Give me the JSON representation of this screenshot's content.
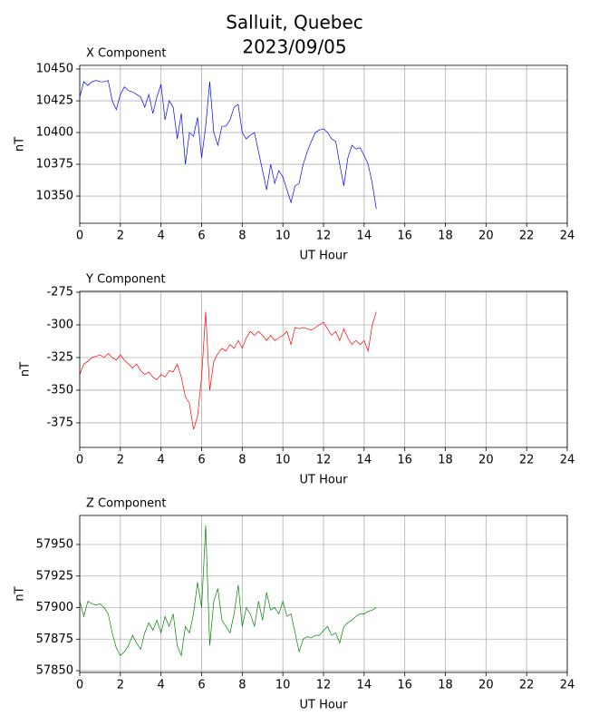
{
  "title": "Salluit, Quebec",
  "subtitle": "2023/09/05",
  "chart_data": [
    {
      "type": "line",
      "title": "X Component",
      "xlabel": "UT Hour",
      "ylabel": "nT",
      "x": [
        0,
        0.2,
        0.4,
        0.6,
        0.8,
        1,
        1.2,
        1.4,
        1.6,
        1.8,
        2,
        2.2,
        2.4,
        2.6,
        2.8,
        3,
        3.2,
        3.4,
        3.6,
        3.8,
        4,
        4.2,
        4.4,
        4.6,
        4.8,
        5,
        5.2,
        5.4,
        5.6,
        5.8,
        6,
        6.2,
        6.4,
        6.6,
        6.8,
        7,
        7.2,
        7.4,
        7.6,
        7.8,
        8,
        8.2,
        8.4,
        8.6,
        8.8,
        9,
        9.2,
        9.4,
        9.6,
        9.8,
        10,
        10.2,
        10.4,
        10.6,
        10.8,
        11,
        11.2,
        11.4,
        11.6,
        11.8,
        12,
        12.2,
        12.4,
        12.6,
        12.8,
        13,
        13.2,
        13.4,
        13.6,
        13.8,
        14,
        14.2,
        14.4,
        14.6
      ],
      "series": [
        {
          "name": "X",
          "color": "#0000ff",
          "values": [
            10428,
            10440,
            10437,
            10440,
            10441,
            10440,
            10440,
            10441,
            10425,
            10418,
            10430,
            10436,
            10433,
            10432,
            10430,
            10428,
            10420,
            10430,
            10415,
            10428,
            10438,
            10410,
            10425,
            10420,
            10395,
            10415,
            10375,
            10400,
            10397,
            10412,
            10380,
            10405,
            10440,
            10400,
            10390,
            10405,
            10405,
            10410,
            10420,
            10422,
            10400,
            10395,
            10398,
            10400,
            10385,
            10370,
            10355,
            10375,
            10360,
            10370,
            10365,
            10355,
            10345,
            10358,
            10360,
            10375,
            10385,
            10393,
            10400,
            10402,
            10403,
            10400,
            10395,
            10393,
            10375,
            10358,
            10380,
            10390,
            10387,
            10388,
            10382,
            10375,
            10360,
            10340
          ]
        }
      ],
      "xlim": [
        0,
        24
      ],
      "xticks": [
        0,
        2,
        4,
        6,
        8,
        10,
        12,
        14,
        16,
        18,
        20,
        22,
        24
      ],
      "ylim": [
        10328.6,
        10452.9
      ],
      "yticks": [
        10350,
        10375,
        10400,
        10425,
        10450
      ],
      "grid": true
    },
    {
      "type": "line",
      "title": "Y Component",
      "xlabel": "UT Hour",
      "ylabel": "nT",
      "x": [
        0,
        0.2,
        0.4,
        0.6,
        0.8,
        1,
        1.2,
        1.4,
        1.6,
        1.8,
        2,
        2.2,
        2.4,
        2.6,
        2.8,
        3,
        3.2,
        3.4,
        3.6,
        3.8,
        4,
        4.2,
        4.4,
        4.6,
        4.8,
        5,
        5.2,
        5.4,
        5.6,
        5.8,
        6,
        6.2,
        6.4,
        6.6,
        6.8,
        7,
        7.2,
        7.4,
        7.6,
        7.8,
        8,
        8.2,
        8.4,
        8.6,
        8.8,
        9,
        9.2,
        9.4,
        9.6,
        9.8,
        10,
        10.2,
        10.4,
        10.6,
        10.8,
        11,
        11.2,
        11.4,
        11.6,
        11.8,
        12,
        12.2,
        12.4,
        12.6,
        12.8,
        13,
        13.2,
        13.4,
        13.6,
        13.8,
        14,
        14.2,
        14.4,
        14.6
      ],
      "series": [
        {
          "name": "Y",
          "color": "#ff0000",
          "values": [
            -338,
            -330,
            -328,
            -325,
            -324,
            -323,
            -325,
            -322,
            -325,
            -327,
            -323,
            -327,
            -330,
            -333,
            -330,
            -335,
            -338,
            -336,
            -340,
            -342,
            -338,
            -340,
            -335,
            -336,
            -330,
            -340,
            -355,
            -360,
            -380,
            -370,
            -340,
            -290,
            -350,
            -328,
            -322,
            -318,
            -320,
            -315,
            -318,
            -312,
            -318,
            -310,
            -305,
            -308,
            -305,
            -308,
            -312,
            -308,
            -312,
            -310,
            -308,
            -305,
            -315,
            -302,
            -303,
            -302,
            -303,
            -304,
            -302,
            -300,
            -298,
            -303,
            -308,
            -305,
            -312,
            -303,
            -310,
            -315,
            -312,
            -315,
            -312,
            -320,
            -300,
            -290
          ]
        }
      ],
      "xlim": [
        0,
        24
      ],
      "xticks": [
        0,
        2,
        4,
        6,
        8,
        10,
        12,
        14,
        16,
        18,
        20,
        22,
        24
      ],
      "ylim": [
        -393.8,
        -274.3
      ],
      "yticks": [
        -375,
        -350,
        -325,
        -300,
        -275
      ],
      "grid": true
    },
    {
      "type": "line",
      "title": "Z Component",
      "xlabel": "UT Hour",
      "ylabel": "nT",
      "x": [
        0,
        0.2,
        0.4,
        0.6,
        0.8,
        1,
        1.2,
        1.4,
        1.6,
        1.8,
        2,
        2.2,
        2.4,
        2.6,
        2.8,
        3,
        3.2,
        3.4,
        3.6,
        3.8,
        4,
        4.2,
        4.4,
        4.6,
        4.8,
        5,
        5.2,
        5.4,
        5.6,
        5.8,
        6,
        6.2,
        6.4,
        6.6,
        6.8,
        7,
        7.2,
        7.4,
        7.6,
        7.8,
        8,
        8.2,
        8.4,
        8.6,
        8.8,
        9,
        9.2,
        9.4,
        9.6,
        9.8,
        10,
        10.2,
        10.4,
        10.6,
        10.8,
        11,
        11.2,
        11.4,
        11.6,
        11.8,
        12,
        12.2,
        12.4,
        12.6,
        12.8,
        13,
        13.2,
        13.4,
        13.6,
        13.8,
        14,
        14.2,
        14.4,
        14.6
      ],
      "series": [
        {
          "name": "Z",
          "color": "#008000",
          "values": [
            57905,
            57893,
            57905,
            57903,
            57902,
            57903,
            57900,
            57895,
            57880,
            57868,
            57862,
            57865,
            57870,
            57878,
            57872,
            57867,
            57880,
            57888,
            57882,
            57890,
            57880,
            57893,
            57885,
            57895,
            57870,
            57862,
            57885,
            57880,
            57895,
            57920,
            57900,
            57965,
            57870,
            57905,
            57915,
            57890,
            57885,
            57880,
            57895,
            57918,
            57885,
            57900,
            57895,
            57885,
            57905,
            57890,
            57912,
            57898,
            57900,
            57895,
            57905,
            57893,
            57895,
            57880,
            57865,
            57875,
            57877,
            57876,
            57878,
            57878,
            57882,
            57885,
            57878,
            57880,
            57872,
            57885,
            57888,
            57890,
            57893,
            57895,
            57895,
            57897,
            57898,
            57900
          ]
        }
      ],
      "xlim": [
        0,
        24
      ],
      "xticks": [
        0,
        2,
        4,
        6,
        8,
        10,
        12,
        14,
        16,
        18,
        20,
        22,
        24
      ],
      "ylim": [
        57848.6,
        57973
      ],
      "yticks": [
        57850,
        57875,
        57900,
        57925,
        57950
      ],
      "grid": true
    }
  ]
}
